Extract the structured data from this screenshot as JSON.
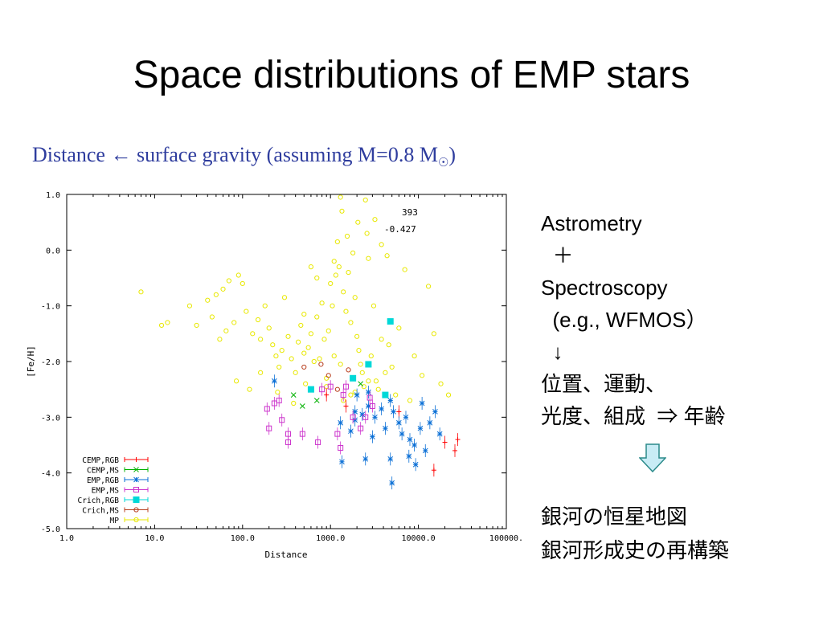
{
  "slide": {
    "title": "Space distributions of EMP stars",
    "subtitle_main": "Distance ← surface gravity (assuming M=0.8 M",
    "subtitle_sub": "☉",
    "subtitle_end": ")"
  },
  "side_text": {
    "lines": [
      "Astrometry",
      "  ＋",
      "Spectroscopy",
      "  (e.g., WFMOS）",
      "  ↓",
      "位置、運動、",
      "光度、組成  ⇒ 年齢"
    ],
    "lines2": [
      "銀河の恒星地図",
      "銀河形成史の再構築"
    ]
  },
  "colors": {
    "subtitle": "#2f3d9e",
    "arrow_fill": "#c8ecf5",
    "arrow_stroke": "#2a8a8a"
  },
  "chart_data": {
    "type": "scatter",
    "xlabel": "Distance",
    "ylabel": "[Fe/H]",
    "xscale": "log",
    "xlim": [
      1,
      100000
    ],
    "ylim": [
      -5,
      1
    ],
    "x_ticks": [
      "1.0",
      "10.0",
      "100.0",
      "1000.0",
      "10000.0",
      "100000."
    ],
    "y_ticks": [
      "1.0",
      "0.0",
      "-1.0",
      "-2.0",
      "-3.0",
      "-4.0",
      "-5.0"
    ],
    "annotations": [
      "393",
      "-0.427"
    ],
    "legend_position": "bottom-left",
    "series": [
      {
        "name": "CEMP,RGB",
        "color": "#ff0000",
        "marker": "plus",
        "points": [
          [
            15000,
            -3.95
          ],
          [
            20000,
            -3.45
          ],
          [
            26000,
            -3.6
          ],
          [
            28000,
            -3.4
          ],
          [
            6000,
            -2.9
          ],
          [
            900,
            -2.6
          ],
          [
            1500,
            -2.8
          ]
        ]
      },
      {
        "name": "CEMP,MS",
        "color": "#00b000",
        "marker": "cross",
        "points": [
          [
            380,
            -2.6
          ],
          [
            480,
            -2.8
          ],
          [
            2200,
            -2.4
          ],
          [
            700,
            -2.7
          ]
        ]
      },
      {
        "name": "EMP,RGB",
        "color": "#0a6fd6",
        "marker": "star",
        "points": [
          [
            230,
            -2.35
          ],
          [
            1300,
            -3.1
          ],
          [
            1700,
            -3.25
          ],
          [
            1900,
            -3.05
          ],
          [
            2300,
            -2.95
          ],
          [
            2700,
            -2.8
          ],
          [
            3200,
            -3.0
          ],
          [
            3800,
            -2.85
          ],
          [
            4200,
            -3.2
          ],
          [
            4800,
            -2.7
          ],
          [
            5200,
            -2.9
          ],
          [
            6000,
            -3.1
          ],
          [
            6500,
            -3.3
          ],
          [
            7200,
            -3.0
          ],
          [
            8000,
            -3.4
          ],
          [
            9000,
            -3.5
          ],
          [
            10500,
            -3.2
          ],
          [
            12000,
            -3.6
          ],
          [
            13500,
            -3.1
          ],
          [
            15500,
            -2.9
          ],
          [
            17500,
            -3.3
          ],
          [
            1350,
            -3.8
          ],
          [
            2500,
            -3.75
          ],
          [
            4800,
            -3.75
          ],
          [
            5000,
            -4.18
          ],
          [
            9300,
            -3.85
          ],
          [
            2000,
            -2.6
          ],
          [
            3000,
            -3.35
          ],
          [
            11000,
            -2.75
          ],
          [
            7800,
            -3.7
          ],
          [
            2700,
            -2.55
          ],
          [
            1900,
            -2.9
          ]
        ]
      },
      {
        "name": "EMP,MS",
        "color": "#cc33cc",
        "marker": "square",
        "points": [
          [
            190,
            -2.85
          ],
          [
            230,
            -2.75
          ],
          [
            260,
            -2.7
          ],
          [
            280,
            -3.05
          ],
          [
            200,
            -3.2
          ],
          [
            330,
            -3.3
          ],
          [
            330,
            -3.45
          ],
          [
            480,
            -3.3
          ],
          [
            720,
            -3.45
          ],
          [
            1300,
            -3.55
          ],
          [
            1500,
            -2.45
          ],
          [
            1800,
            -3.0
          ],
          [
            2200,
            -3.2
          ],
          [
            2500,
            -3.0
          ],
          [
            3000,
            -2.8
          ],
          [
            1000,
            -2.45
          ],
          [
            800,
            -2.5
          ],
          [
            1400,
            -2.6
          ],
          [
            2800,
            -2.65
          ],
          [
            1200,
            -3.3
          ]
        ]
      },
      {
        "name": "Crich,RGB",
        "color": "#00d8d8",
        "marker": "filled-square",
        "points": [
          [
            4800,
            -1.28
          ],
          [
            2700,
            -2.05
          ],
          [
            1800,
            -2.3
          ],
          [
            4200,
            -2.6
          ],
          [
            600,
            -2.5
          ]
        ]
      },
      {
        "name": "Crich,MS",
        "color": "#b84020",
        "marker": "circle",
        "points": [
          [
            780,
            -2.05
          ],
          [
            950,
            -2.25
          ],
          [
            1200,
            -2.5
          ],
          [
            1600,
            -2.15
          ],
          [
            500,
            -2.1
          ]
        ]
      },
      {
        "name": "MP",
        "color": "#e8e800",
        "marker": "circle",
        "points": [
          [
            7,
            -0.75
          ],
          [
            12,
            -1.35
          ],
          [
            14,
            -1.3
          ],
          [
            30,
            -1.35
          ],
          [
            25,
            -1.0
          ],
          [
            40,
            -0.9
          ],
          [
            50,
            -0.8
          ],
          [
            60,
            -0.7
          ],
          [
            70,
            -0.55
          ],
          [
            90,
            -0.45
          ],
          [
            100,
            -0.6
          ],
          [
            45,
            -1.2
          ],
          [
            55,
            -1.6
          ],
          [
            65,
            -1.45
          ],
          [
            80,
            -1.3
          ],
          [
            110,
            -1.1
          ],
          [
            130,
            -1.5
          ],
          [
            150,
            -1.25
          ],
          [
            160,
            -1.6
          ],
          [
            180,
            -1.0
          ],
          [
            200,
            -1.4
          ],
          [
            220,
            -1.7
          ],
          [
            240,
            -1.9
          ],
          [
            260,
            -2.1
          ],
          [
            280,
            -1.8
          ],
          [
            300,
            -0.85
          ],
          [
            330,
            -1.55
          ],
          [
            360,
            -1.95
          ],
          [
            400,
            -2.2
          ],
          [
            430,
            -1.65
          ],
          [
            460,
            -1.35
          ],
          [
            500,
            -1.85
          ],
          [
            520,
            -2.4
          ],
          [
            560,
            -1.75
          ],
          [
            600,
            -1.5
          ],
          [
            650,
            -2.0
          ],
          [
            700,
            -1.2
          ],
          [
            750,
            -1.95
          ],
          [
            800,
            -0.95
          ],
          [
            850,
            -1.6
          ],
          [
            900,
            -2.3
          ],
          [
            950,
            -1.45
          ],
          [
            1000,
            -0.6
          ],
          [
            1050,
            -1.0
          ],
          [
            1100,
            -0.2
          ],
          [
            1150,
            -0.45
          ],
          [
            1200,
            0.15
          ],
          [
            1250,
            -0.3
          ],
          [
            1300,
            0.95
          ],
          [
            1350,
            0.7
          ],
          [
            1400,
            -0.75
          ],
          [
            1500,
            -1.1
          ],
          [
            1600,
            -0.4
          ],
          [
            1700,
            -1.3
          ],
          [
            1800,
            -0.05
          ],
          [
            1900,
            -0.85
          ],
          [
            2000,
            -1.55
          ],
          [
            2100,
            -1.8
          ],
          [
            2200,
            -2.05
          ],
          [
            2300,
            -2.2
          ],
          [
            2400,
            -2.45
          ],
          [
            2500,
            0.9
          ],
          [
            2700,
            -0.15
          ],
          [
            2900,
            -1.9
          ],
          [
            3100,
            -1.0
          ],
          [
            3300,
            -2.35
          ],
          [
            3500,
            -2.5
          ],
          [
            3800,
            -1.6
          ],
          [
            4200,
            -2.2
          ],
          [
            4600,
            -1.7
          ],
          [
            5000,
            -2.1
          ],
          [
            5500,
            -2.6
          ],
          [
            6000,
            -1.4
          ],
          [
            7000,
            -0.35
          ],
          [
            8000,
            -2.7
          ],
          [
            9000,
            -1.9
          ],
          [
            11000,
            -2.25
          ],
          [
            13000,
            -0.65
          ],
          [
            15000,
            -1.5
          ],
          [
            18000,
            -2.4
          ],
          [
            22000,
            -2.6
          ],
          [
            1700,
            -2.6
          ],
          [
            1400,
            -2.7
          ],
          [
            900,
            -2.45
          ],
          [
            380,
            -2.75
          ],
          [
            250,
            -2.55
          ],
          [
            160,
            -2.2
          ],
          [
            120,
            -2.5
          ],
          [
            85,
            -2.35
          ],
          [
            700,
            -0.5
          ],
          [
            600,
            -0.3
          ],
          [
            1550,
            0.25
          ],
          [
            2050,
            0.5
          ],
          [
            2600,
            0.3
          ],
          [
            3200,
            0.55
          ],
          [
            3800,
            0.1
          ],
          [
            4400,
            -0.1
          ],
          [
            500,
            -1.15
          ],
          [
            1100,
            -1.9
          ],
          [
            1300,
            -2.05
          ],
          [
            2700,
            -2.35
          ],
          [
            1900,
            -2.55
          ]
        ]
      }
    ]
  }
}
